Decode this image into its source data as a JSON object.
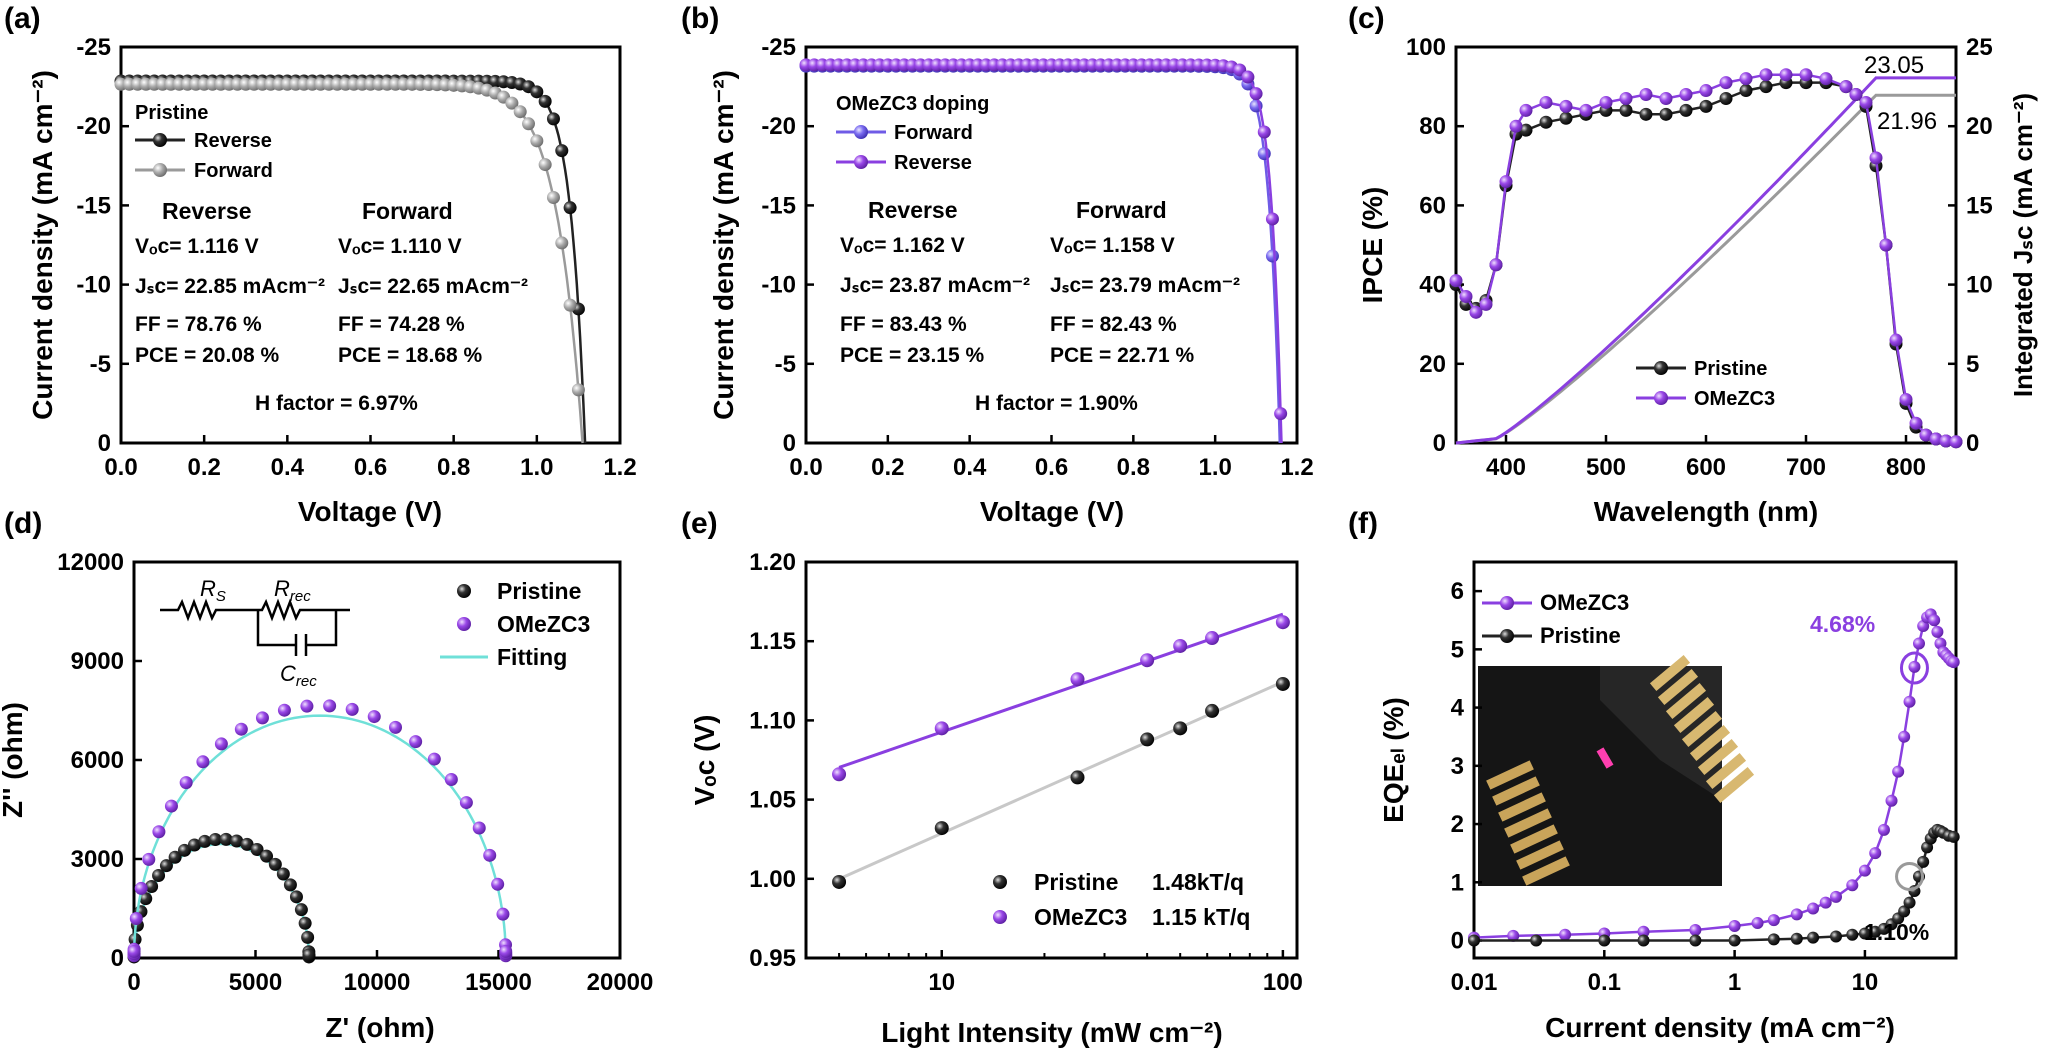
{
  "colors": {
    "black": "#222222",
    "gray": "#9a9a9a",
    "purple": "#8a3fe0",
    "purple2": "#a050e8",
    "blue": "#6f5be6",
    "cyan": "#6fe0d8",
    "gray_line": "#c8c8c8"
  },
  "chart_data": [
    {
      "id": "a",
      "panel_label": "(a)",
      "type": "line",
      "xlabel": "Voltage (V)",
      "ylabel": "Current density (mA cm⁻²)",
      "xlim": [
        0,
        1.2
      ],
      "ylim": [
        -25,
        0
      ],
      "xticks": [
        "0.0",
        "0.2",
        "0.4",
        "0.6",
        "0.8",
        "1.0",
        "1.2"
      ],
      "yticks": [
        "0",
        "-5",
        "-10",
        "-15",
        "-20",
        "-25"
      ],
      "legend_title": "Pristine",
      "series": [
        {
          "name": "Reverse",
          "color": "black",
          "voc": 1.116,
          "jsc": 22.85,
          "ff": 78.76
        },
        {
          "name": "Forward",
          "color": "gray",
          "voc": 1.11,
          "jsc": 22.65,
          "ff": 74.28
        }
      ],
      "text": {
        "rev_head": "Reverse",
        "fwd_head": "Forward",
        "rev_voc": "Vₒᴄ= 1.116 V",
        "fwd_voc": "Vₒᴄ= 1.110 V",
        "rev_jsc": "Jₛᴄ= 22.85 mAcm⁻²",
        "fwd_jsc": "Jₛᴄ= 22.65 mAcm⁻²",
        "rev_ff": "FF = 78.76 %",
        "fwd_ff": "FF = 74.28 %",
        "rev_pce": "PCE =  20.08 %",
        "fwd_pce": "PCE =  18.68 %",
        "hfactor": "H factor = 6.97%"
      }
    },
    {
      "id": "b",
      "panel_label": "(b)",
      "type": "line",
      "xlabel": "Voltage (V)",
      "ylabel": "Current density (mA cm⁻²)",
      "xlim": [
        0,
        1.2
      ],
      "ylim": [
        -25,
        0
      ],
      "xticks": [
        "0.0",
        "0.2",
        "0.4",
        "0.6",
        "0.8",
        "1.0",
        "1.2"
      ],
      "yticks": [
        "0",
        "-5",
        "-10",
        "-15",
        "-20",
        "-25"
      ],
      "legend_title": "OMeZC3 doping",
      "series": [
        {
          "name": "Forward",
          "color": "blue",
          "voc": 1.158,
          "jsc": 23.79,
          "ff": 82.43
        },
        {
          "name": "Reverse",
          "color": "purple",
          "voc": 1.162,
          "jsc": 23.87,
          "ff": 83.43
        }
      ],
      "text": {
        "rev_head": "Reverse",
        "fwd_head": "Forward",
        "rev_voc": "Vₒᴄ= 1.162 V",
        "fwd_voc": "Vₒᴄ= 1.158 V",
        "rev_jsc": "Jₛᴄ= 23.87 mAcm⁻²",
        "fwd_jsc": "Jₛᴄ= 23.79 mAcm⁻²",
        "rev_ff": "FF = 83.43 %",
        "fwd_ff": "FF = 82.43 %",
        "rev_pce": "PCE =  23.15 %",
        "fwd_pce": "PCE =  22.71 %",
        "hfactor": "H factor = 1.90%"
      }
    },
    {
      "id": "c",
      "panel_label": "(c)",
      "type": "line",
      "xlabel": "Wavelength (nm)",
      "ylabel": "IPCE (%)",
      "y2label": "Integrated Jₛᴄ (mA cm⁻²)",
      "xlim": [
        350,
        850
      ],
      "ylim": [
        0,
        100
      ],
      "y2lim": [
        0,
        25
      ],
      "xticks": [
        "400",
        "500",
        "600",
        "700",
        "800"
      ],
      "yticks": [
        "0",
        "20",
        "40",
        "60",
        "80",
        "100"
      ],
      "y2ticks": [
        "0",
        "5",
        "10",
        "15",
        "20",
        "25"
      ],
      "series": [
        {
          "name": "Pristine",
          "color": "black",
          "x": [
            350,
            360,
            370,
            380,
            390,
            400,
            410,
            420,
            440,
            460,
            480,
            500,
            520,
            540,
            560,
            580,
            600,
            620,
            640,
            660,
            680,
            700,
            720,
            740,
            750,
            760,
            770,
            780,
            790,
            800,
            810,
            820,
            830,
            840,
            850
          ],
          "y": [
            40,
            35,
            34,
            36,
            45,
            65,
            78,
            79,
            81,
            82,
            83,
            84,
            84,
            83,
            83,
            84,
            85,
            87,
            89,
            90,
            91,
            91,
            91,
            90,
            88,
            85,
            70,
            50,
            25,
            10,
            4,
            2,
            1,
            0.5,
            0.3
          ]
        },
        {
          "name": "OMeZC3",
          "color": "purple",
          "x": [
            350,
            360,
            370,
            380,
            390,
            400,
            410,
            420,
            440,
            460,
            480,
            500,
            520,
            540,
            560,
            580,
            600,
            620,
            640,
            660,
            680,
            700,
            720,
            740,
            750,
            760,
            770,
            780,
            790,
            800,
            810,
            820,
            830,
            840,
            850
          ],
          "y": [
            41,
            37,
            33,
            35,
            45,
            66,
            80,
            84,
            86,
            85,
            84,
            86,
            87,
            88,
            87,
            88,
            89,
            91,
            92,
            93,
            93,
            93,
            92,
            90,
            88,
            86,
            72,
            50,
            26,
            11,
            5,
            2,
            1,
            0.5,
            0.3
          ]
        }
      ],
      "integrated": [
        {
          "name": "Pristine",
          "color": "gray",
          "value": 21.96
        },
        {
          "name": "OMeZC3",
          "color": "purple",
          "value": 23.05
        }
      ],
      "annotations": [
        "23.05",
        "21.96"
      ]
    },
    {
      "id": "d",
      "panel_label": "(d)",
      "type": "scatter",
      "xlabel": "Z' (ohm)",
      "ylabel": "Z'' (ohm)",
      "xlim": [
        0,
        20000
      ],
      "ylim": [
        0,
        12000
      ],
      "xticks": [
        "0",
        "5000",
        "10000",
        "15000",
        "20000"
      ],
      "yticks": [
        "0",
        "3000",
        "6000",
        "9000",
        "12000"
      ],
      "series": [
        {
          "name": "Pristine",
          "color": "black",
          "r_start": 0,
          "diameter": 7200
        },
        {
          "name": "OMeZC3",
          "color": "purple",
          "r_start": 0,
          "diameter": 15300
        },
        {
          "name": "Fitting",
          "color": "cyan"
        }
      ],
      "circuit": {
        "rs": "R",
        "rs_sub": "S",
        "rrec": "R",
        "rrec_sub": "rec",
        "crec": "C",
        "crec_sub": "rec"
      }
    },
    {
      "id": "e",
      "panel_label": "(e)",
      "type": "scatter",
      "xlabel": "Light Intensity (mW cm⁻²)",
      "ylabel": "Vₒᴄ (V)",
      "xscale": "log",
      "xlim": [
        4,
        110
      ],
      "ylim": [
        0.95,
        1.2
      ],
      "xticks": [
        "10",
        "100"
      ],
      "yticks": [
        "0.95",
        "1.00",
        "1.05",
        "1.10",
        "1.15",
        "1.20"
      ],
      "series": [
        {
          "name": "Pristine",
          "slope_label": "1.48kT/q",
          "color": "black",
          "x": [
            5,
            10,
            25,
            40,
            50,
            62,
            100
          ],
          "y": [
            0.998,
            1.032,
            1.064,
            1.088,
            1.095,
            1.106,
            1.123
          ]
        },
        {
          "name": "OMeZC3",
          "slope_label": "1.15 kT/q",
          "color": "purple",
          "x": [
            5,
            10,
            25,
            40,
            50,
            62,
            100
          ],
          "y": [
            1.066,
            1.095,
            1.126,
            1.138,
            1.147,
            1.152,
            1.162
          ]
        }
      ]
    },
    {
      "id": "f",
      "panel_label": "(f)",
      "type": "line",
      "xlabel": "Current density (mA cm⁻²)",
      "ylabel": "EQEₑₗ (%)",
      "xscale": "log",
      "xlim": [
        0.01,
        50
      ],
      "ylim": [
        -0.3,
        6.5
      ],
      "xticks": [
        "0.01",
        "0.1",
        "1",
        "10"
      ],
      "yticks": [
        "0",
        "1",
        "2",
        "3",
        "4",
        "5",
        "6"
      ],
      "series": [
        {
          "name": "OMeZC3",
          "color": "purple",
          "x": [
            0.01,
            0.02,
            0.05,
            0.1,
            0.2,
            0.5,
            1,
            1.5,
            2,
            3,
            4,
            5,
            6,
            8,
            10,
            12,
            14,
            16,
            18,
            20,
            22,
            24,
            26,
            28,
            30,
            32,
            34,
            36,
            38,
            40,
            42,
            44,
            46,
            48
          ],
          "y": [
            0.05,
            0.08,
            0.1,
            0.12,
            0.15,
            0.18,
            0.25,
            0.3,
            0.35,
            0.45,
            0.55,
            0.65,
            0.75,
            0.95,
            1.2,
            1.5,
            1.9,
            2.4,
            2.9,
            3.5,
            4.1,
            4.7,
            5.1,
            5.4,
            5.55,
            5.6,
            5.5,
            5.3,
            5.1,
            4.95,
            4.9,
            4.85,
            4.8,
            4.78
          ]
        },
        {
          "name": "Pristine",
          "color": "black",
          "x": [
            0.01,
            0.03,
            0.1,
            0.2,
            0.5,
            1,
            2,
            3,
            4,
            6,
            8,
            10,
            12,
            14,
            16,
            18,
            20,
            22,
            24,
            26,
            28,
            30,
            32,
            34,
            36,
            38,
            40,
            44,
            48
          ],
          "y": [
            0,
            0,
            0,
            0,
            0,
            0,
            0.02,
            0.03,
            0.05,
            0.07,
            0.1,
            0.12,
            0.15,
            0.2,
            0.28,
            0.38,
            0.5,
            0.65,
            0.85,
            1.1,
            1.35,
            1.6,
            1.75,
            1.85,
            1.9,
            1.88,
            1.85,
            1.8,
            1.78
          ]
        }
      ],
      "annotations": [
        "4.68%",
        "1.10%"
      ]
    }
  ]
}
